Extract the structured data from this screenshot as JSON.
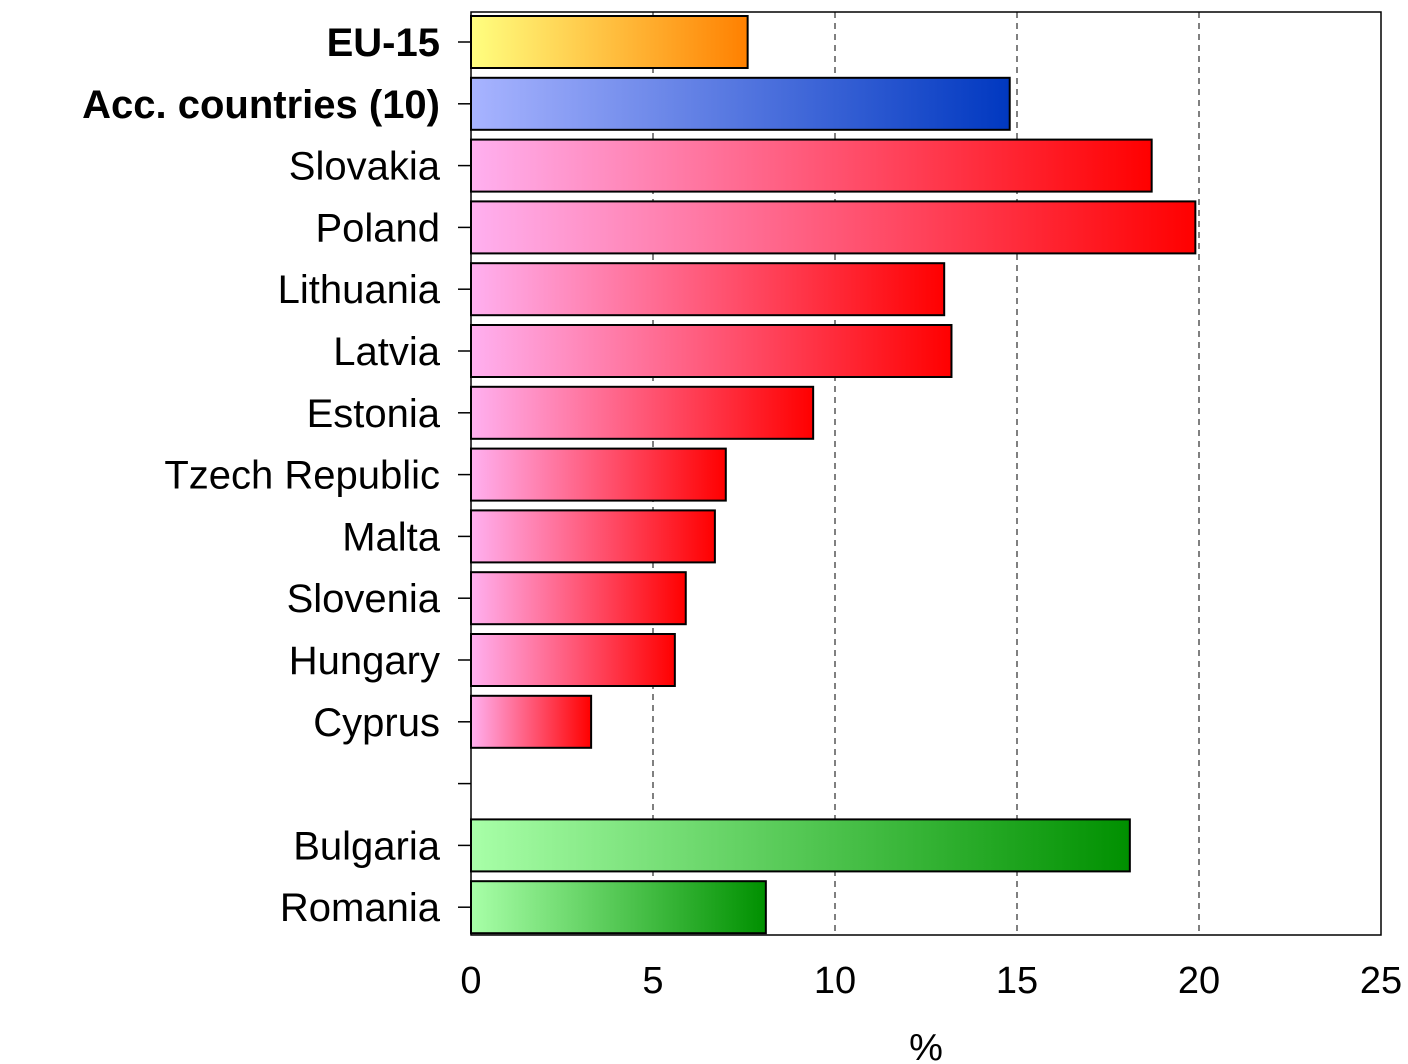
{
  "chart_data": {
    "type": "bar",
    "orientation": "horizontal",
    "categories": [
      "EU-15",
      "Acc. countries (10)",
      "Slovakia",
      "Poland",
      "Lithuania",
      "Latvia",
      "Estonia",
      "Tzech Republic",
      "Malta",
      "Slovenia",
      "Hungary",
      "Cyprus",
      "",
      "Bulgaria",
      "Romania"
    ],
    "values": [
      7.6,
      14.8,
      18.7,
      19.9,
      13.0,
      13.2,
      9.4,
      7.0,
      6.7,
      5.9,
      5.6,
      3.3,
      null,
      18.1,
      8.1
    ],
    "bold_categories": [
      "EU-15",
      "Acc. countries (10)"
    ],
    "groups": [
      "eu15",
      "acc",
      "acc_member",
      "acc_member",
      "acc_member",
      "acc_member",
      "acc_member",
      "acc_member",
      "acc_member",
      "acc_member",
      "acc_member",
      "acc_member",
      "gap",
      "candidate",
      "candidate"
    ],
    "group_colors": {
      "eu15": [
        "#ffff80",
        "#ff8000"
      ],
      "acc": [
        "#a8b4ff",
        "#0038c0"
      ],
      "acc_member": [
        "#ffb0f0",
        "#ff0000"
      ],
      "candidate": [
        "#a8ffa8",
        "#009000"
      ]
    },
    "xlabel": "%",
    "xlim": [
      0,
      25
    ],
    "xticks": [
      0,
      5,
      10,
      15,
      20,
      25
    ],
    "grid": "vertical-dashed",
    "legend": "none"
  }
}
